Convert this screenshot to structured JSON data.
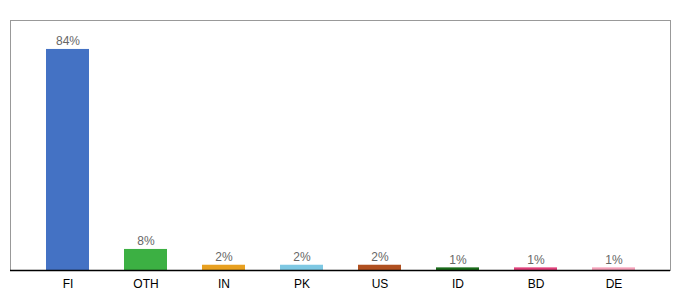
{
  "chart_data": {
    "type": "bar",
    "categories": [
      "FI",
      "OTH",
      "IN",
      "PK",
      "US",
      "ID",
      "BD",
      "DE"
    ],
    "values": [
      84,
      8,
      2,
      2,
      2,
      1,
      1,
      1
    ],
    "value_labels": [
      "84%",
      "8%",
      "2%",
      "2%",
      "2%",
      "1%",
      "1%",
      "1%"
    ],
    "colors": [
      "#4472c4",
      "#3cb043",
      "#e8a020",
      "#7ec8e3",
      "#b05020",
      "#1a6b1a",
      "#e0407a",
      "#f4a0b8"
    ],
    "data_labels": true,
    "ylim": [
      0,
      95
    ],
    "tick_labels": "x",
    "grid": false
  }
}
